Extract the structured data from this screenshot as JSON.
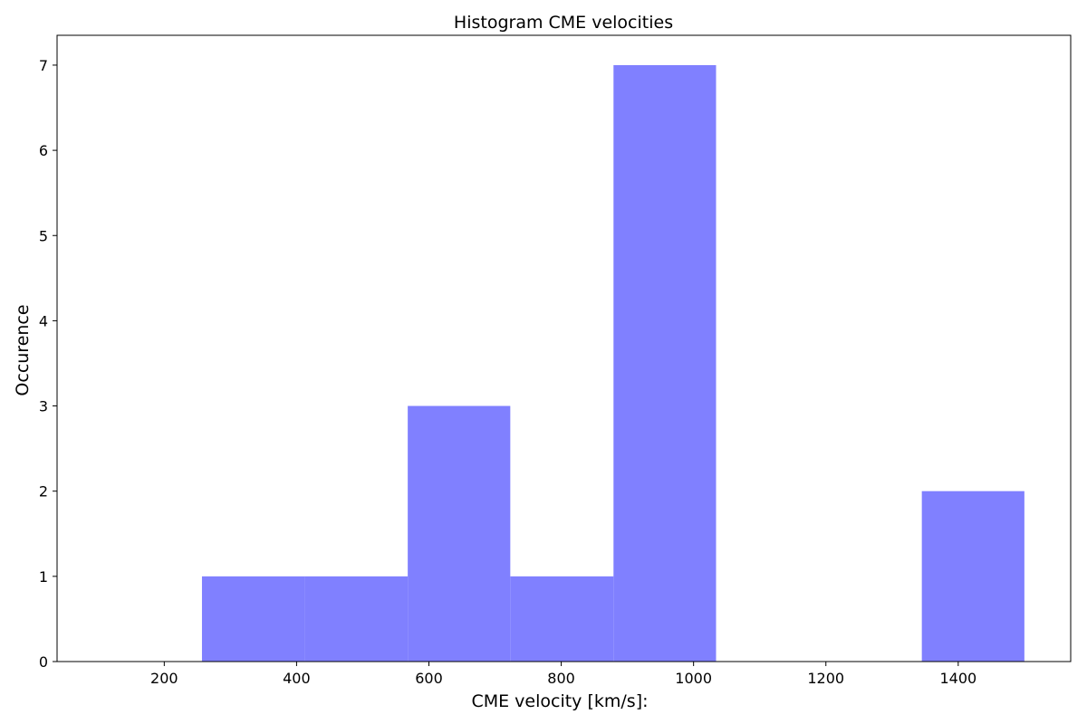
{
  "chart_data": {
    "type": "bar",
    "title": "Histogram CME velocities",
    "xlabel": "CME velocity [km/s]:",
    "ylabel": "Occurence",
    "bar_color": "#8080ff",
    "bins": [
      {
        "start": 257,
        "end": 413,
        "count": 1
      },
      {
        "start": 413,
        "end": 568,
        "count": 1
      },
      {
        "start": 568,
        "end": 723,
        "count": 3
      },
      {
        "start": 723,
        "end": 879,
        "count": 1
      },
      {
        "start": 879,
        "end": 1034,
        "count": 7
      },
      {
        "start": 1034,
        "end": 1190,
        "count": 0
      },
      {
        "start": 1190,
        "end": 1345,
        "count": 0
      },
      {
        "start": 1345,
        "end": 1500,
        "count": 2
      }
    ],
    "xlim": [
      38,
      1570
    ],
    "ylim": [
      0,
      7.35
    ],
    "xticks": [
      200,
      400,
      600,
      800,
      1000,
      1200,
      1400
    ],
    "xtick_labels": [
      "200",
      "400",
      "600",
      "800",
      "1000",
      "1200",
      "1400"
    ],
    "yticks": [
      0,
      1,
      2,
      3,
      4,
      5,
      6,
      7
    ],
    "ytick_labels": [
      "0",
      "1",
      "2",
      "3",
      "4",
      "5",
      "6",
      "7"
    ],
    "grid": false,
    "legend": "none"
  }
}
